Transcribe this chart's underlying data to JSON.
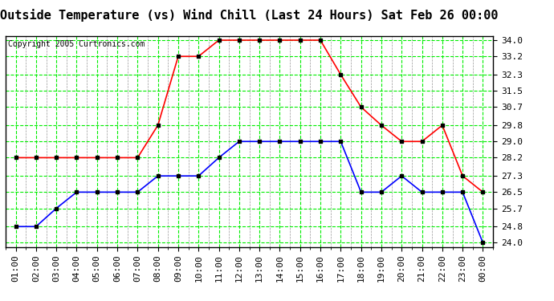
{
  "title": "Outside Temperature (vs) Wind Chill (Last 24 Hours) Sat Feb 26 00:00",
  "copyright": "Copyright 2005 Curtronics.com",
  "x_labels": [
    "01:00",
    "02:00",
    "03:00",
    "04:00",
    "05:00",
    "06:00",
    "07:00",
    "08:00",
    "09:00",
    "10:00",
    "11:00",
    "12:00",
    "13:00",
    "14:00",
    "15:00",
    "16:00",
    "17:00",
    "18:00",
    "19:00",
    "20:00",
    "21:00",
    "22:00",
    "23:00",
    "00:00"
  ],
  "y_ticks": [
    24.0,
    24.8,
    25.7,
    26.5,
    27.3,
    28.2,
    29.0,
    29.8,
    30.7,
    31.5,
    32.3,
    33.2,
    34.0
  ],
  "ylim": [
    23.8,
    34.2
  ],
  "red_data": [
    28.2,
    28.2,
    28.2,
    28.2,
    28.2,
    28.2,
    28.2,
    29.8,
    33.2,
    33.2,
    34.0,
    34.0,
    34.0,
    34.0,
    34.0,
    34.0,
    32.3,
    30.7,
    29.8,
    29.0,
    29.0,
    29.8,
    27.3,
    26.5
  ],
  "blue_data": [
    24.8,
    24.8,
    25.7,
    26.5,
    26.5,
    26.5,
    26.5,
    27.3,
    27.3,
    27.3,
    28.2,
    29.0,
    29.0,
    29.0,
    29.0,
    29.0,
    29.0,
    26.5,
    26.5,
    27.3,
    26.5,
    26.5,
    26.5,
    24.0
  ],
  "red_color": "#ff0000",
  "blue_color": "#0000ff",
  "bg_color": "#ffffff",
  "grid_color": "#00ee00",
  "plot_bg": "#ffffff",
  "marker_color": "#000000",
  "marker_size": 3,
  "line_width": 1.2,
  "title_fontsize": 11,
  "tick_fontsize": 8,
  "copyright_fontsize": 7
}
